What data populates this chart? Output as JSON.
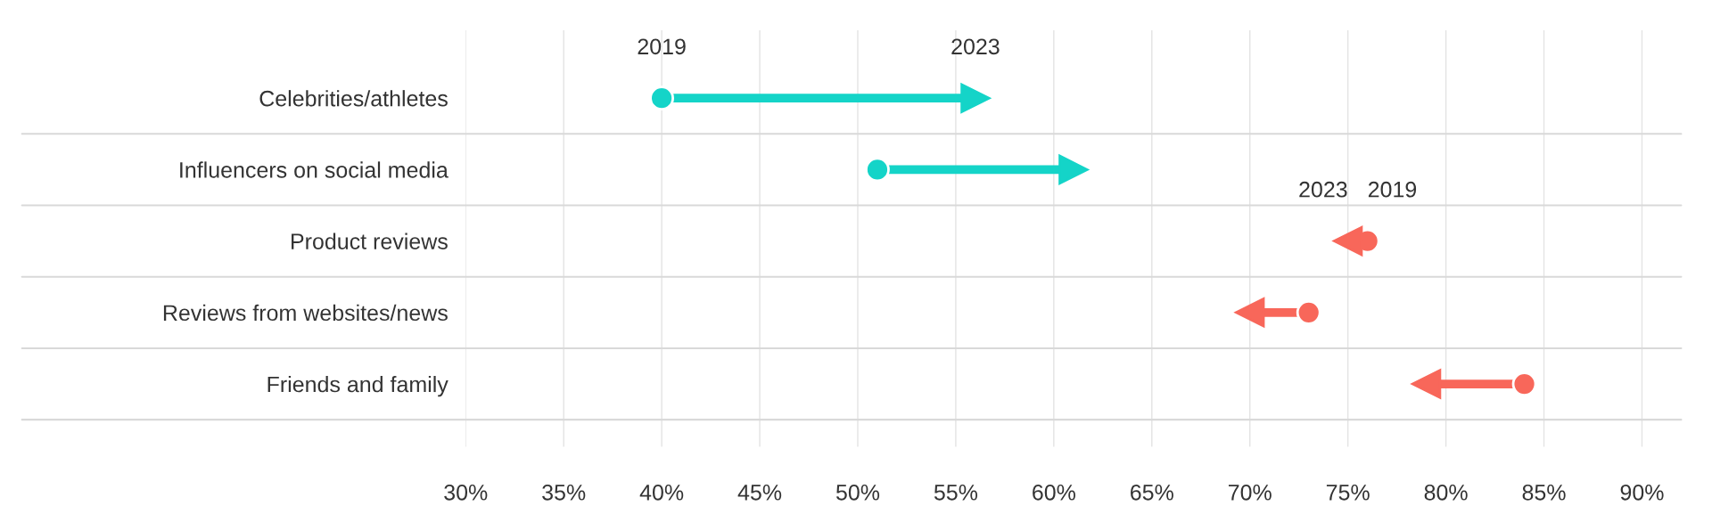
{
  "chart_data": {
    "type": "scatter",
    "orientation": "horizontal",
    "categories": [
      "Celebrities/athletes",
      "Influencers on social media",
      "Product reviews",
      "Reviews from websites/news",
      "Friends and family"
    ],
    "series": [
      {
        "name": "2019",
        "marker": "circle",
        "values": [
          40,
          51,
          76,
          73,
          84
        ],
        "colors": [
          "#14d4c8",
          "#14d4c8",
          "#f8675a",
          "#f8675a",
          "#f8675a"
        ]
      },
      {
        "name": "2023",
        "marker": "triangle",
        "values": [
          56,
          61,
          75,
          70,
          79
        ],
        "colors": [
          "#14d4c8",
          "#14d4c8",
          "#f8675a",
          "#f8675a",
          "#f8675a"
        ]
      }
    ],
    "xlim": [
      30,
      92
    ],
    "xticks": [
      {
        "value": 30,
        "label": "30%"
      },
      {
        "value": 35,
        "label": "35%"
      },
      {
        "value": 40,
        "label": "40%"
      },
      {
        "value": 45,
        "label": "45%"
      },
      {
        "value": 50,
        "label": "50%"
      },
      {
        "value": 55,
        "label": "55%"
      },
      {
        "value": 60,
        "label": "60%"
      },
      {
        "value": 65,
        "label": "65%"
      },
      {
        "value": 70,
        "label": "70%"
      },
      {
        "value": 75,
        "label": "75%"
      },
      {
        "value": 80,
        "label": "80%"
      },
      {
        "value": 85,
        "label": "85%"
      },
      {
        "value": 90,
        "label": "90%"
      }
    ],
    "grid": "x",
    "legend": false
  }
}
